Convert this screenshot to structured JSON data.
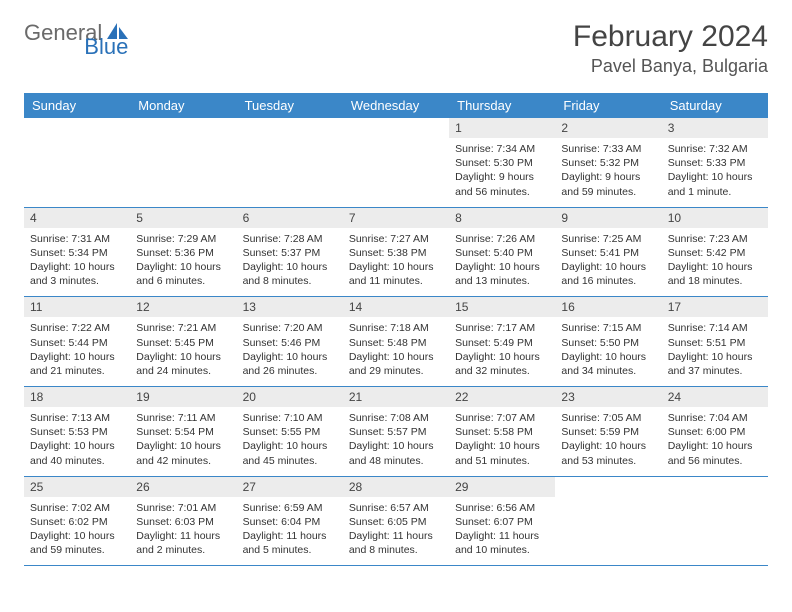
{
  "logo": {
    "text1": "General",
    "text2": "Blue"
  },
  "title": "February 2024",
  "location": "Pavel Banya, Bulgaria",
  "colors": {
    "header_bg": "#3b87c8",
    "header_text": "#ffffff",
    "daynum_bg": "#ececec",
    "row_border": "#3b87c8",
    "logo_gray": "#6a6a6a",
    "logo_blue": "#2a71b8"
  },
  "daylabels": [
    "Sunday",
    "Monday",
    "Tuesday",
    "Wednesday",
    "Thursday",
    "Friday",
    "Saturday"
  ],
  "weeks": [
    [
      {
        "empty": true
      },
      {
        "empty": true
      },
      {
        "empty": true
      },
      {
        "empty": true
      },
      {
        "num": "1",
        "sunrise": "Sunrise: 7:34 AM",
        "sunset": "Sunset: 5:30 PM",
        "daylight": "Daylight: 9 hours and 56 minutes."
      },
      {
        "num": "2",
        "sunrise": "Sunrise: 7:33 AM",
        "sunset": "Sunset: 5:32 PM",
        "daylight": "Daylight: 9 hours and 59 minutes."
      },
      {
        "num": "3",
        "sunrise": "Sunrise: 7:32 AM",
        "sunset": "Sunset: 5:33 PM",
        "daylight": "Daylight: 10 hours and 1 minute."
      }
    ],
    [
      {
        "num": "4",
        "sunrise": "Sunrise: 7:31 AM",
        "sunset": "Sunset: 5:34 PM",
        "daylight": "Daylight: 10 hours and 3 minutes."
      },
      {
        "num": "5",
        "sunrise": "Sunrise: 7:29 AM",
        "sunset": "Sunset: 5:36 PM",
        "daylight": "Daylight: 10 hours and 6 minutes."
      },
      {
        "num": "6",
        "sunrise": "Sunrise: 7:28 AM",
        "sunset": "Sunset: 5:37 PM",
        "daylight": "Daylight: 10 hours and 8 minutes."
      },
      {
        "num": "7",
        "sunrise": "Sunrise: 7:27 AM",
        "sunset": "Sunset: 5:38 PM",
        "daylight": "Daylight: 10 hours and 11 minutes."
      },
      {
        "num": "8",
        "sunrise": "Sunrise: 7:26 AM",
        "sunset": "Sunset: 5:40 PM",
        "daylight": "Daylight: 10 hours and 13 minutes."
      },
      {
        "num": "9",
        "sunrise": "Sunrise: 7:25 AM",
        "sunset": "Sunset: 5:41 PM",
        "daylight": "Daylight: 10 hours and 16 minutes."
      },
      {
        "num": "10",
        "sunrise": "Sunrise: 7:23 AM",
        "sunset": "Sunset: 5:42 PM",
        "daylight": "Daylight: 10 hours and 18 minutes."
      }
    ],
    [
      {
        "num": "11",
        "sunrise": "Sunrise: 7:22 AM",
        "sunset": "Sunset: 5:44 PM",
        "daylight": "Daylight: 10 hours and 21 minutes."
      },
      {
        "num": "12",
        "sunrise": "Sunrise: 7:21 AM",
        "sunset": "Sunset: 5:45 PM",
        "daylight": "Daylight: 10 hours and 24 minutes."
      },
      {
        "num": "13",
        "sunrise": "Sunrise: 7:20 AM",
        "sunset": "Sunset: 5:46 PM",
        "daylight": "Daylight: 10 hours and 26 minutes."
      },
      {
        "num": "14",
        "sunrise": "Sunrise: 7:18 AM",
        "sunset": "Sunset: 5:48 PM",
        "daylight": "Daylight: 10 hours and 29 minutes."
      },
      {
        "num": "15",
        "sunrise": "Sunrise: 7:17 AM",
        "sunset": "Sunset: 5:49 PM",
        "daylight": "Daylight: 10 hours and 32 minutes."
      },
      {
        "num": "16",
        "sunrise": "Sunrise: 7:15 AM",
        "sunset": "Sunset: 5:50 PM",
        "daylight": "Daylight: 10 hours and 34 minutes."
      },
      {
        "num": "17",
        "sunrise": "Sunrise: 7:14 AM",
        "sunset": "Sunset: 5:51 PM",
        "daylight": "Daylight: 10 hours and 37 minutes."
      }
    ],
    [
      {
        "num": "18",
        "sunrise": "Sunrise: 7:13 AM",
        "sunset": "Sunset: 5:53 PM",
        "daylight": "Daylight: 10 hours and 40 minutes."
      },
      {
        "num": "19",
        "sunrise": "Sunrise: 7:11 AM",
        "sunset": "Sunset: 5:54 PM",
        "daylight": "Daylight: 10 hours and 42 minutes."
      },
      {
        "num": "20",
        "sunrise": "Sunrise: 7:10 AM",
        "sunset": "Sunset: 5:55 PM",
        "daylight": "Daylight: 10 hours and 45 minutes."
      },
      {
        "num": "21",
        "sunrise": "Sunrise: 7:08 AM",
        "sunset": "Sunset: 5:57 PM",
        "daylight": "Daylight: 10 hours and 48 minutes."
      },
      {
        "num": "22",
        "sunrise": "Sunrise: 7:07 AM",
        "sunset": "Sunset: 5:58 PM",
        "daylight": "Daylight: 10 hours and 51 minutes."
      },
      {
        "num": "23",
        "sunrise": "Sunrise: 7:05 AM",
        "sunset": "Sunset: 5:59 PM",
        "daylight": "Daylight: 10 hours and 53 minutes."
      },
      {
        "num": "24",
        "sunrise": "Sunrise: 7:04 AM",
        "sunset": "Sunset: 6:00 PM",
        "daylight": "Daylight: 10 hours and 56 minutes."
      }
    ],
    [
      {
        "num": "25",
        "sunrise": "Sunrise: 7:02 AM",
        "sunset": "Sunset: 6:02 PM",
        "daylight": "Daylight: 10 hours and 59 minutes."
      },
      {
        "num": "26",
        "sunrise": "Sunrise: 7:01 AM",
        "sunset": "Sunset: 6:03 PM",
        "daylight": "Daylight: 11 hours and 2 minutes."
      },
      {
        "num": "27",
        "sunrise": "Sunrise: 6:59 AM",
        "sunset": "Sunset: 6:04 PM",
        "daylight": "Daylight: 11 hours and 5 minutes."
      },
      {
        "num": "28",
        "sunrise": "Sunrise: 6:57 AM",
        "sunset": "Sunset: 6:05 PM",
        "daylight": "Daylight: 11 hours and 8 minutes."
      },
      {
        "num": "29",
        "sunrise": "Sunrise: 6:56 AM",
        "sunset": "Sunset: 6:07 PM",
        "daylight": "Daylight: 11 hours and 10 minutes."
      },
      {
        "empty": true
      },
      {
        "empty": true
      }
    ]
  ]
}
